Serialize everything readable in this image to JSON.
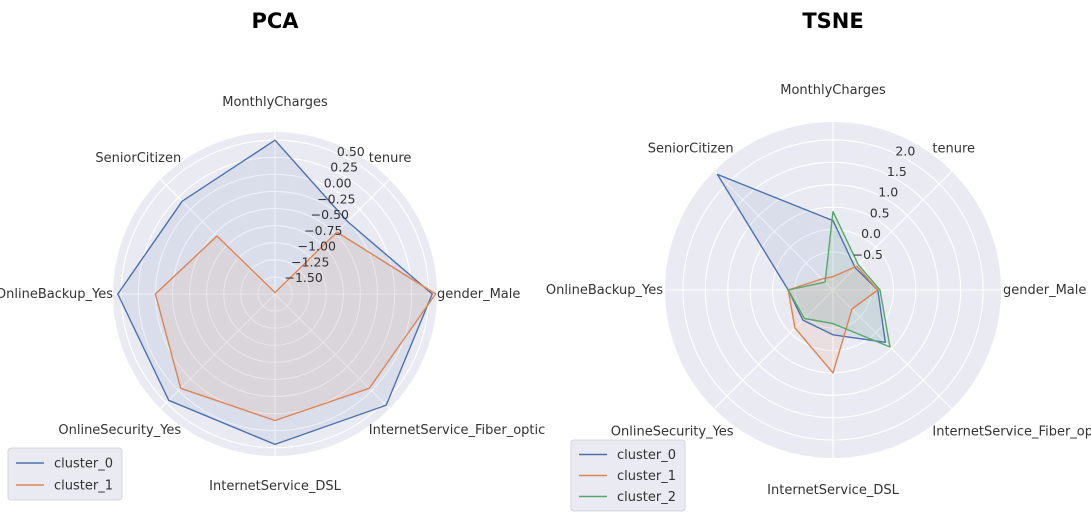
{
  "chart_data": [
    {
      "type": "radar",
      "title": "PCA",
      "axes": [
        "MonthlyCharges",
        "tenure",
        "gender_Male",
        "InternetService_Fiber_optic",
        "InternetService_DSL",
        "OnlineSecurity_Yes",
        "OnlineBackup_Yes",
        "SeniorCitizen"
      ],
      "axis_labels": [
        "MonthlyCharges",
        "tenure",
        "gender_Male",
        "InternetService_Fiber_optic",
        "InternetService_DSL",
        "OnlineSecurity_Yes",
        "OnlineBackup_Yes",
        "SeniorCitizen"
      ],
      "rlim": [
        -1.75,
        0.62
      ],
      "ticks": [
        -1.5,
        -1.25,
        -1.0,
        -0.75,
        -0.5,
        -0.25,
        0.0,
        0.25,
        0.5
      ],
      "tick_labels": [
        "−1.50",
        "−1.25",
        "−1.00",
        "−0.75",
        "−0.50",
        "−0.25",
        "0.00",
        "0.25",
        "0.50"
      ],
      "series": [
        {
          "name": "cluster_0",
          "color": "#4c72b0",
          "values": [
            0.5,
            -0.25,
            0.55,
            0.55,
            0.45,
            0.45,
            0.55,
            0.17
          ]
        },
        {
          "name": "cluster_1",
          "color": "#dd8452",
          "values": [
            -1.73,
            -0.47,
            0.6,
            0.2,
            0.1,
            0.2,
            0.0,
            -0.55
          ]
        }
      ],
      "legend_location": "lower left",
      "grid": true
    },
    {
      "type": "radar",
      "title": "TSNE",
      "axes": [
        "MonthlyCharges",
        "tenure",
        "gender_Male",
        "InternetService_Fiber_optic",
        "InternetService_DSL",
        "OnlineSecurity_Yes",
        "OnlineBackup_Yes",
        "SeniorCitizen"
      ],
      "axis_labels": [
        "MonthlyCharges",
        "tenure",
        "gender_Male",
        "InternetService_Fiber_optic",
        "InternetService_DSL",
        "OnlineSecurity_Yes",
        "OnlineBackup_Yes",
        "SeniorCitizen"
      ],
      "rlim": [
        -1.35,
        2.4
      ],
      "ticks": [
        -0.5,
        0.0,
        0.5,
        1.0,
        1.5,
        2.0
      ],
      "tick_labels": [
        "−0.5",
        "0.0",
        "0.5",
        "1.0",
        "1.5",
        "2.0"
      ],
      "series": [
        {
          "name": "cluster_0",
          "color": "#4c72b0",
          "values": [
            0.2,
            -0.65,
            -0.35,
            0.3,
            -0.35,
            -0.4,
            -0.35,
            2.3
          ]
        },
        {
          "name": "cluster_1",
          "color": "#dd8452",
          "values": [
            -1.05,
            -0.6,
            -0.35,
            -0.75,
            0.5,
            -0.15,
            -0.35,
            -1.0
          ]
        },
        {
          "name": "cluster_2",
          "color": "#55a868",
          "values": [
            0.4,
            -0.55,
            -0.3,
            0.45,
            -0.6,
            -0.45,
            -0.35,
            -1.1
          ]
        }
      ],
      "legend_location": "lower left",
      "grid": true
    }
  ]
}
